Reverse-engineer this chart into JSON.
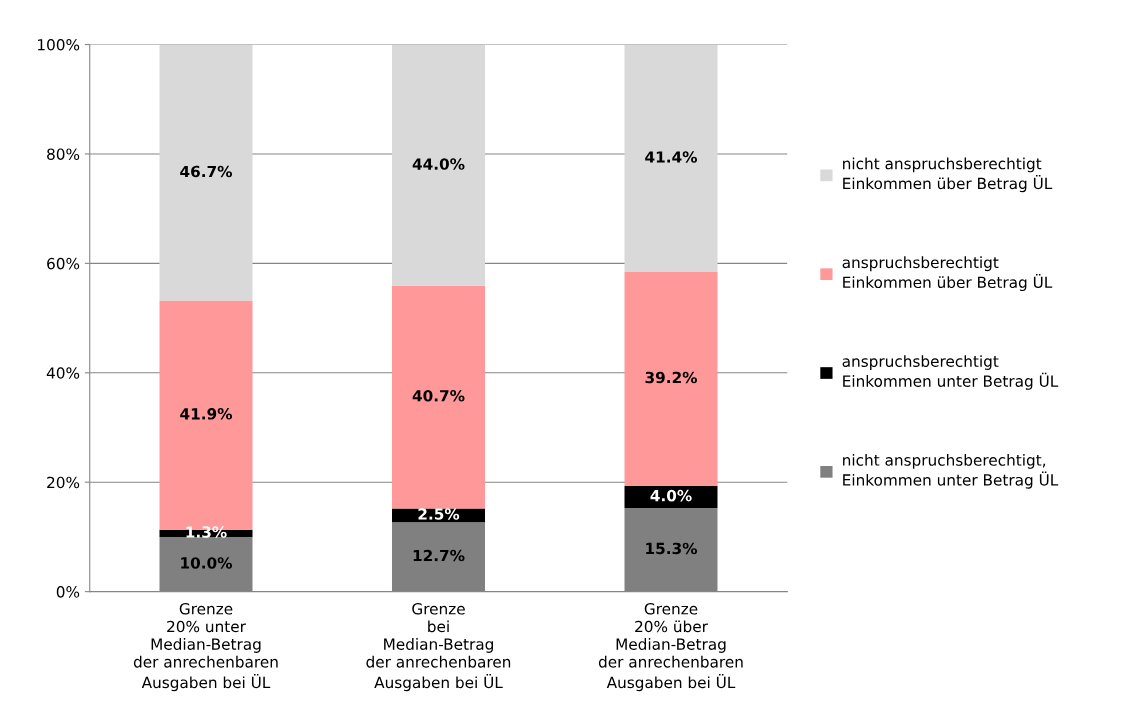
{
  "chart_data": {
    "type": "bar",
    "stacked": true,
    "categories": [
      "Grenze\n20% unter\nMedian-Betrag\nder anrechenbaren\nAusgaben bei ÜL",
      "Grenze\nbei\nMedian-Betrag\nder anrechenbaren\nAusgaben bei ÜL",
      "Grenze\n20% über\nMedian-Betrag\nder anrechenbaren\nAusgaben bei ÜL"
    ],
    "series": [
      {
        "name": "nicht anspruchsberechtigt,\nEinkommen unter Betrag ÜL",
        "color": "#808080",
        "values": [
          10.0,
          12.7,
          15.3
        ],
        "value_labels": [
          "10.0%",
          "12.7%",
          "15.3%"
        ]
      },
      {
        "name": "anspruchsberechtigt\nEinkommen unter Betrag ÜL",
        "color": "#000000",
        "values": [
          1.3,
          2.5,
          4.0
        ],
        "value_labels": [
          "1.3%",
          "2.5%",
          "4.0%"
        ]
      },
      {
        "name": "anspruchsberechtigt\nEinkommen über Betrag ÜL",
        "color": "#ff9999",
        "values": [
          41.9,
          40.7,
          39.2
        ],
        "value_labels": [
          "41.9%",
          "40.7%",
          "39.2%"
        ]
      },
      {
        "name": "nicht anspruchsberechtigt\nEinkommen über Betrag ÜL",
        "color": "#d9d9d9",
        "values": [
          46.7,
          44.0,
          41.4
        ],
        "value_labels": [
          "46.7%",
          "44.0%",
          "41.4%"
        ]
      }
    ],
    "ylim": [
      0,
      100
    ],
    "yticks": [
      {
        "value": 0,
        "label": "0%"
      },
      {
        "value": 20,
        "label": "20%"
      },
      {
        "value": 40,
        "label": "40%"
      },
      {
        "value": 60,
        "label": "60%"
      },
      {
        "value": 80,
        "label": "80%"
      },
      {
        "value": 100,
        "label": "100%"
      }
    ],
    "grid": "y",
    "legend": "right"
  }
}
